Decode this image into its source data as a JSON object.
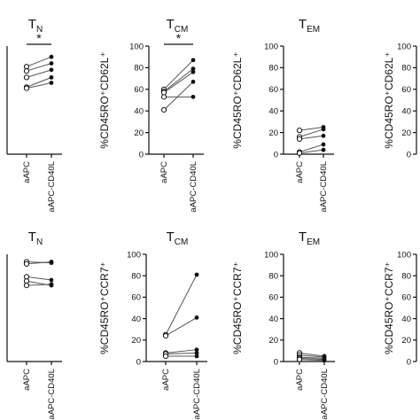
{
  "chart_data": [
    {
      "type": "line",
      "title": "TN",
      "title_main": "T",
      "title_sub": "N",
      "ylabel": "",
      "categories": [
        "aAPC",
        "aAPC-CD40L"
      ],
      "ylim": [
        0,
        100
      ],
      "yticks": [],
      "significance": "*",
      "series": [
        {
          "values": [
            81,
            90
          ]
        },
        {
          "values": [
            77,
            84
          ]
        },
        {
          "values": [
            71,
            78
          ]
        },
        {
          "values": [
            62,
            71
          ]
        },
        {
          "values": [
            61,
            66
          ]
        }
      ]
    },
    {
      "type": "line",
      "title": "TCM",
      "title_main": "T",
      "title_sub": "CM",
      "ylabel": "%CD45RO⁺CD62L⁺",
      "categories": [
        "aAPC",
        "aAPC-CD40L"
      ],
      "ylim": [
        0,
        100
      ],
      "yticks": [
        "0",
        "20",
        "40",
        "60",
        "80",
        "100"
      ],
      "significance": "*",
      "series": [
        {
          "values": [
            60,
            87
          ]
        },
        {
          "values": [
            58,
            79
          ]
        },
        {
          "values": [
            57,
            76
          ]
        },
        {
          "values": [
            53,
            53
          ]
        },
        {
          "values": [
            41,
            67
          ]
        }
      ]
    },
    {
      "type": "line",
      "title": "TEM",
      "title_main": "T",
      "title_sub": "EM",
      "ylabel": "%CD45RO⁺CD62L⁺",
      "categories": [
        "aAPC",
        "aAPC-CD40L"
      ],
      "ylim": [
        0,
        100
      ],
      "yticks": [
        "0",
        "20",
        "40",
        "60",
        "80",
        "100"
      ],
      "significance": "",
      "series": [
        {
          "values": [
            22,
            25
          ]
        },
        {
          "values": [
            16,
            23
          ]
        },
        {
          "values": [
            14,
            17
          ]
        },
        {
          "values": [
            2,
            9
          ]
        },
        {
          "values": [
            1,
            4
          ]
        }
      ]
    },
    {
      "type": "line",
      "title": "",
      "title_main": "",
      "title_sub": "",
      "ylabel": "%CD45RO⁺CD62L⁺",
      "categories": [],
      "ylim": [
        0,
        100
      ],
      "yticks": [
        "0",
        "20",
        "40",
        "60",
        "80",
        "100"
      ],
      "significance": "",
      "series": []
    },
    {
      "type": "line",
      "title": "TN",
      "title_main": "T",
      "title_sub": "N",
      "ylabel": "",
      "categories": [
        "aAPC",
        "aAPC-CD40L"
      ],
      "ylim": [
        0,
        100
      ],
      "yticks": [],
      "significance": "",
      "series": [
        {
          "values": [
            93,
            92
          ]
        },
        {
          "values": [
            91,
            93
          ]
        },
        {
          "values": [
            79,
            76
          ]
        },
        {
          "values": [
            75,
            71
          ]
        },
        {
          "values": [
            71,
            72
          ]
        }
      ]
    },
    {
      "type": "line",
      "title": "TCM",
      "title_main": "T",
      "title_sub": "CM",
      "ylabel": "%CD45RO⁺CCR7⁺",
      "categories": [
        "aAPC",
        "aAPC-CD40L"
      ],
      "ylim": [
        0,
        100
      ],
      "yticks": [
        "0",
        "20",
        "40",
        "60",
        "80",
        "100"
      ],
      "significance": "",
      "series": [
        {
          "values": [
            25,
            81
          ]
        },
        {
          "values": [
            24,
            41
          ]
        },
        {
          "values": [
            8,
            11
          ]
        },
        {
          "values": [
            7,
            8
          ]
        },
        {
          "values": [
            5,
            5
          ]
        }
      ]
    },
    {
      "type": "line",
      "title": "TEM",
      "title_main": "T",
      "title_sub": "EM",
      "ylabel": "%CD45RO⁺CCR7⁺",
      "categories": [
        "aAPC",
        "aAPC-CD40L"
      ],
      "ylim": [
        0,
        100
      ],
      "yticks": [
        "0",
        "20",
        "40",
        "60",
        "80",
        "100"
      ],
      "significance": "",
      "series": [
        {
          "values": [
            8,
            5
          ]
        },
        {
          "values": [
            6,
            4
          ]
        },
        {
          "values": [
            4,
            3
          ]
        },
        {
          "values": [
            3,
            2
          ]
        },
        {
          "values": [
            2,
            1
          ]
        }
      ]
    },
    {
      "type": "line",
      "title": "",
      "title_main": "",
      "title_sub": "",
      "ylabel": "%CD45RO⁺CCR7⁺",
      "categories": [],
      "ylim": [
        0,
        100
      ],
      "yticks": [
        "0",
        "20",
        "40",
        "60",
        "80",
        "100"
      ],
      "significance": "",
      "series": []
    }
  ]
}
